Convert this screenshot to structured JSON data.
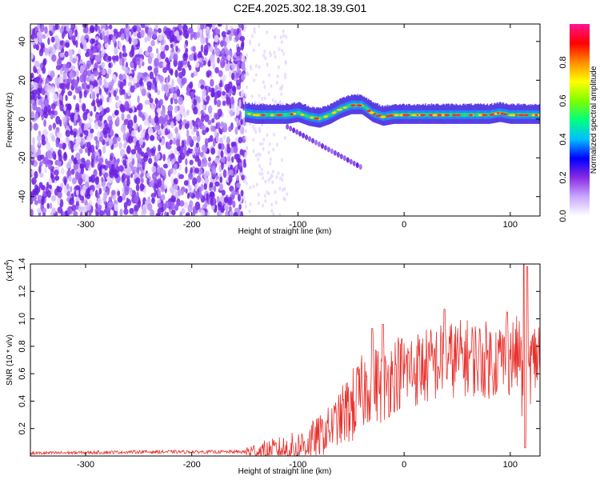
{
  "title": "C2E4.2025.302.18.39.G01",
  "chart_data": [
    {
      "type": "heatmap",
      "xlabel": "Height of straight line (km)",
      "ylabel": "Frequency (Hz)",
      "xlim": [
        -352,
        128
      ],
      "ylim": [
        -50,
        49
      ],
      "xticks": [
        -300,
        -200,
        -100,
        0,
        100
      ],
      "yticks": [
        -40,
        -20,
        0,
        20,
        40
      ],
      "colorbar": {
        "label": "Normalized spectral amplitude",
        "range": [
          0,
          1
        ],
        "ticks": [
          "0.0",
          "0.2",
          "0.4",
          "0.6",
          "0.8"
        ],
        "tick_values": [
          0,
          0.2,
          0.4,
          0.6,
          0.8
        ],
        "colors": [
          "#ffffff",
          "#c8a8ff",
          "#8a2be2",
          "#0000ff",
          "#00bfff",
          "#00ff7f",
          "#7fff00",
          "#ffff00",
          "#ff8c00",
          "#ff0000",
          "#ff1493"
        ]
      },
      "ridge": {
        "x": [
          -150,
          -140,
          -130,
          -120,
          -110,
          -100,
          -90,
          -80,
          -70,
          -60,
          -50,
          -40,
          -30,
          -20,
          -10,
          0,
          20,
          40,
          60,
          80,
          90,
          100,
          110,
          128
        ],
        "y": [
          3,
          2,
          2,
          2,
          2,
          3,
          1,
          0,
          2,
          5,
          7,
          7,
          3,
          1,
          2,
          2,
          2,
          2,
          2,
          2,
          3,
          2,
          2,
          2
        ]
      },
      "branch": {
        "x": [
          -110,
          -100,
          -90,
          -80,
          -70,
          -60,
          -50,
          -40
        ],
        "y": [
          -4,
          -7,
          -10,
          -13,
          -16,
          -19,
          -22,
          -25
        ]
      }
    },
    {
      "type": "line",
      "xlabel": "Height of straight line (km)",
      "ylabel": "SNR (10 * v/v)",
      "multiplier": "(x10",
      "multiplier_exp": "4",
      "multiplier_close": ")",
      "xlim": [
        -352,
        128
      ],
      "ylim": [
        0,
        1.4
      ],
      "xticks": [
        -300,
        -200,
        -100,
        0,
        100
      ],
      "yticks": [
        "0.2",
        "0.4",
        "0.6",
        "0.8",
        "1.0",
        "1.2",
        "1.4"
      ],
      "ytick_values": [
        0.2,
        0.4,
        0.6,
        0.8,
        1.0,
        1.2,
        1.4
      ],
      "color": "#e8312d",
      "envelope": {
        "x": [
          -352,
          -250,
          -150,
          -120,
          -100,
          -90,
          -80,
          -70,
          -60,
          -50,
          -40,
          -30,
          -20,
          -10,
          0,
          20,
          40,
          60,
          80,
          100,
          110,
          113,
          115,
          120,
          128
        ],
        "y": [
          0.02,
          0.03,
          0.03,
          0.04,
          0.06,
          0.1,
          0.14,
          0.2,
          0.28,
          0.35,
          0.45,
          0.55,
          0.5,
          0.6,
          0.62,
          0.65,
          0.7,
          0.72,
          0.7,
          0.72,
          0.75,
          0.1,
          0.6,
          0.68,
          0.75
        ]
      },
      "peaks": [
        {
          "x": -30,
          "y": 0.93
        },
        {
          "x": -20,
          "y": 0.96
        },
        {
          "x": 38,
          "y": 1.07
        },
        {
          "x": 97,
          "y": 1.05
        },
        {
          "x": 113,
          "y": 1.4
        },
        {
          "x": 116,
          "y": 1.38
        },
        {
          "x": 114,
          "y": 0.06
        }
      ]
    }
  ]
}
